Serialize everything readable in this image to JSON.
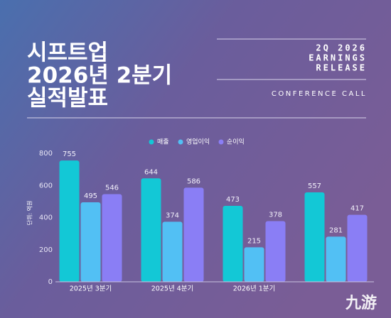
{
  "header": {
    "title": [
      "시프트업",
      "2026년 2분기",
      "실적발표"
    ],
    "release": [
      "2Q 2026",
      "EARNINGS",
      "RELEASE"
    ],
    "subtitle": "CONFERENCE CALL"
  },
  "watermark": "九游",
  "chart_data": {
    "type": "bar",
    "y_label": "단위: 억원",
    "categories": [
      "2025년 3분기",
      "2025년 4분기",
      "2026년 1분기",
      null
    ],
    "series": [
      {
        "name": "매출",
        "color": "#13c8d6",
        "values": [
          755,
          644,
          473,
          557
        ]
      },
      {
        "name": "영업이익",
        "color": "#52c0f4",
        "values": [
          495,
          374,
          215,
          281
        ]
      },
      {
        "name": "순이익",
        "color": "#8a7ef5",
        "values": [
          546,
          586,
          378,
          417
        ]
      }
    ],
    "ylim": [
      0,
      800
    ],
    "yticks": [
      0,
      200,
      400,
      600,
      800
    ],
    "legend": "top"
  }
}
